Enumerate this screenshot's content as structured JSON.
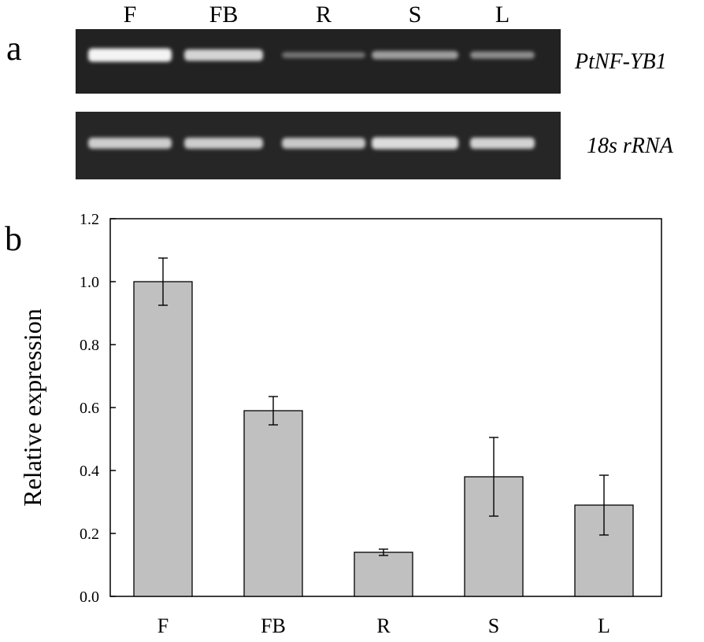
{
  "panel_a": {
    "letter": "a",
    "lanes": [
      "F",
      "FB",
      "R",
      "S",
      "L"
    ],
    "gels": [
      {
        "label": "PtNF-YB1",
        "band_intensity": [
          1.0,
          0.8,
          0.2,
          0.45,
          0.35
        ]
      },
      {
        "label": "18s rRNA",
        "band_intensity": [
          0.75,
          0.75,
          0.72,
          0.85,
          0.78
        ]
      }
    ]
  },
  "panel_b": {
    "letter": "b"
  },
  "colors": {
    "bar_fill": "#c0c0c0",
    "bar_stroke": "#000000",
    "gel_bg": "#222222",
    "band": "#f4f4f4"
  },
  "chart_data": {
    "type": "bar",
    "categories": [
      "F",
      "FB",
      "R",
      "S",
      "L"
    ],
    "values": [
      1.0,
      0.59,
      0.14,
      0.38,
      0.29
    ],
    "error": [
      0.075,
      0.045,
      0.01,
      0.125,
      0.095
    ],
    "ylabel": "Relative expression",
    "ylim": [
      0.0,
      1.2
    ],
    "yticks": [
      "0.0",
      "0.2",
      "0.4",
      "0.6",
      "0.8",
      "1.0",
      "1.2"
    ],
    "grid": false,
    "legend": "none"
  }
}
